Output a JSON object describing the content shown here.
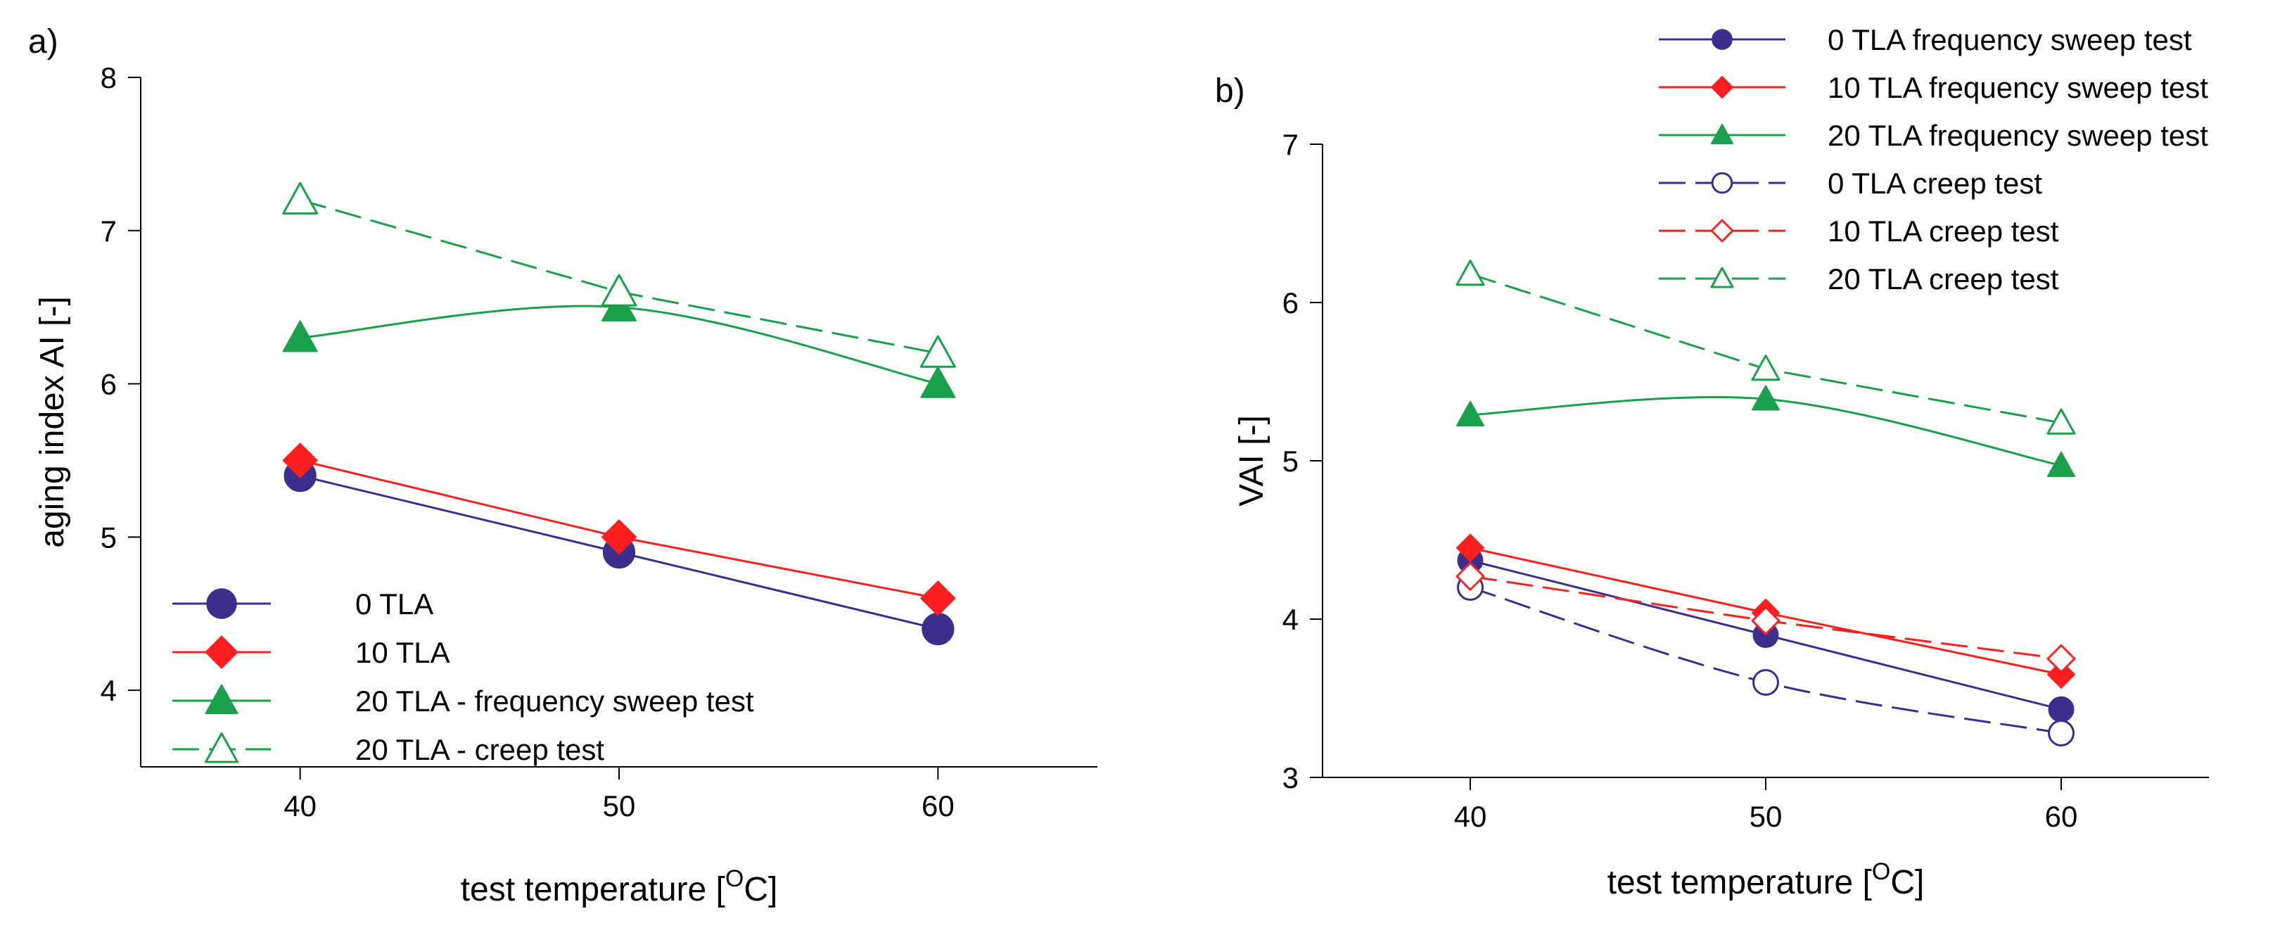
{
  "colors": {
    "navy": "#3b2e8c",
    "red": "#ff1f1f",
    "green": "#1aa04a",
    "axis": "#000000"
  },
  "chart_data": [
    {
      "panel_label": "a)",
      "type": "line",
      "xlabel": "test temperature [",
      "xlabel_sup": "O",
      "xlabel_end": "C]",
      "ylabel": "aging index AI [-]",
      "xlim": [
        35,
        65
      ],
      "ylim": [
        3.5,
        8
      ],
      "xticks": [
        40,
        50,
        60
      ],
      "yticks": [
        4,
        5,
        6,
        7,
        8
      ],
      "legend_position": "bottom-left",
      "series": [
        {
          "name": "0 TLA",
          "x": [
            40,
            50,
            60
          ],
          "values": [
            5.4,
            4.9,
            4.4
          ],
          "color": "navy",
          "marker": "circle",
          "filled": true,
          "dashed": false,
          "smooth": false
        },
        {
          "name": "10 TLA",
          "x": [
            40,
            50,
            60
          ],
          "values": [
            5.5,
            5.0,
            4.6
          ],
          "color": "red",
          "marker": "diamond",
          "filled": true,
          "dashed": false,
          "smooth": false
        },
        {
          "name": "20 TLA - frequency sweep test",
          "x": [
            40,
            50,
            60
          ],
          "values": [
            6.3,
            6.5,
            6.0
          ],
          "color": "green",
          "marker": "triangle",
          "filled": true,
          "dashed": false,
          "smooth": true
        },
        {
          "name": "20 TLA - creep test",
          "x": [
            40,
            50,
            60
          ],
          "values": [
            7.2,
            6.6,
            6.2
          ],
          "color": "green",
          "marker": "triangle",
          "filled": false,
          "dashed": true,
          "smooth": false
        }
      ]
    },
    {
      "panel_label": "b)",
      "type": "line",
      "xlabel": "test temperature [",
      "xlabel_sup": "O",
      "xlabel_end": "C]",
      "ylabel": "VAI [-]",
      "xlim": [
        35,
        65
      ],
      "ylim": [
        3,
        7
      ],
      "xticks": [
        40,
        50,
        60
      ],
      "yticks": [
        3,
        4,
        5,
        6,
        7
      ],
      "legend_position": "top-right",
      "series": [
        {
          "name": "0 TLA frequency sweep test",
          "x": [
            40,
            50,
            60
          ],
          "values": [
            4.37,
            3.9,
            3.43
          ],
          "color": "navy",
          "marker": "circle",
          "filled": true,
          "dashed": false,
          "smooth": false
        },
        {
          "name": "10 TLA frequency sweep test",
          "x": [
            40,
            50,
            60
          ],
          "values": [
            4.45,
            4.04,
            3.65
          ],
          "color": "red",
          "marker": "diamond",
          "filled": true,
          "dashed": false,
          "smooth": false
        },
        {
          "name": "20 TLA frequency sweep test",
          "x": [
            40,
            50,
            60
          ],
          "values": [
            5.29,
            5.39,
            4.97
          ],
          "color": "green",
          "marker": "triangle",
          "filled": true,
          "dashed": false,
          "smooth": true
        },
        {
          "name": "0 TLA creep test",
          "x": [
            40,
            50,
            60
          ],
          "values": [
            4.2,
            3.6,
            3.28
          ],
          "color": "navy",
          "marker": "circle",
          "filled": false,
          "dashed": true,
          "smooth": true
        },
        {
          "name": "10 TLA creep test",
          "x": [
            40,
            50,
            60
          ],
          "values": [
            4.27,
            3.99,
            3.75
          ],
          "color": "red",
          "marker": "diamond",
          "filled": false,
          "dashed": true,
          "smooth": false
        },
        {
          "name": "20 TLA creep test",
          "x": [
            40,
            50,
            60
          ],
          "values": [
            6.18,
            5.58,
            5.24
          ],
          "color": "green",
          "marker": "triangle",
          "filled": false,
          "dashed": true,
          "smooth": false
        }
      ]
    }
  ]
}
